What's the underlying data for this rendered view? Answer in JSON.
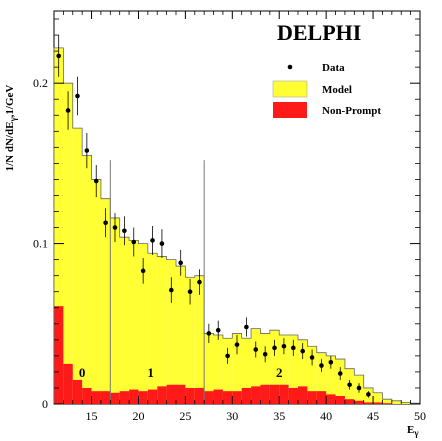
{
  "chart_data": {
    "type": "bar",
    "title": "DELPHI",
    "xlabel": "E",
    "xlabel_sub": "γ",
    "ylabel": "1/N dN/dE",
    "ylabel_sub": "γ",
    "ylabel_unit": ",1/GeV",
    "xlim": [
      11,
      50
    ],
    "ylim": [
      0,
      0.245
    ],
    "x_ticks": [
      15,
      20,
      25,
      30,
      35,
      40,
      45,
      50
    ],
    "x_tick_labels": [
      "15",
      "20",
      "25",
      "30",
      "35",
      "40",
      "45",
      "50"
    ],
    "y_ticks": [
      0,
      0.1,
      0.2
    ],
    "y_tick_labels": [
      "0",
      "0.1",
      "0.2"
    ],
    "bin_edges": [
      11,
      12,
      13,
      14,
      15,
      16,
      17,
      18,
      19,
      20,
      21,
      22,
      23,
      24,
      25,
      26,
      27,
      28,
      29,
      30,
      31,
      32,
      33,
      34,
      35,
      36,
      37,
      38,
      39,
      40,
      41,
      42,
      43,
      44,
      45,
      46,
      47,
      48,
      49,
      50
    ],
    "series": [
      {
        "name": "Model",
        "color": "#ffff33",
        "values": [
          0.222,
          0.2,
          0.172,
          0.155,
          0.14,
          0.128,
          0.116,
          0.104,
          0.102,
          0.1,
          0.094,
          0.092,
          0.09,
          0.086,
          0.079,
          0.08,
          0.044,
          0.043,
          0.041,
          0.044,
          0.041,
          0.047,
          0.044,
          0.046,
          0.043,
          0.043,
          0.04,
          0.036,
          0.032,
          0.03,
          0.028,
          0.022,
          0.018,
          0.01,
          0.007,
          0.003,
          0.002,
          0.001,
          0.0005
        ]
      },
      {
        "name": "Non-Prompt",
        "color": "#ff1a1a",
        "values": [
          0.061,
          0.025,
          0.015,
          0.01,
          0.008,
          0.008,
          0.007,
          0.008,
          0.009,
          0.008,
          0.009,
          0.011,
          0.012,
          0.012,
          0.01,
          0.01,
          0.008,
          0.009,
          0.008,
          0.008,
          0.01,
          0.011,
          0.012,
          0.012,
          0.012,
          0.01,
          0.011,
          0.008,
          0.008,
          0.006,
          0.005,
          0.003,
          0.002,
          0.001,
          0.001,
          0.0005,
          0,
          0,
          0
        ]
      }
    ],
    "data_points": {
      "name": "Data",
      "x": [
        11.5,
        12.5,
        13.5,
        14.5,
        15.5,
        16.5,
        17.5,
        18.5,
        19.5,
        20.5,
        21.5,
        22.5,
        23.5,
        24.5,
        25.5,
        26.5,
        27.5,
        28.5,
        29.5,
        30.5,
        31.5,
        32.5,
        33.5,
        34.5,
        35.5,
        36.5,
        37.5,
        38.5,
        39.5,
        40.5,
        41.5,
        42.5,
        43.5,
        44.5
      ],
      "y": [
        0.217,
        0.183,
        0.192,
        0.158,
        0.139,
        0.113,
        0.11,
        0.108,
        0.101,
        0.083,
        0.102,
        0.1,
        0.071,
        0.088,
        0.07,
        0.076,
        0.044,
        0.046,
        0.03,
        0.037,
        0.048,
        0.034,
        0.031,
        0.035,
        0.036,
        0.035,
        0.033,
        0.029,
        0.024,
        0.026,
        0.019,
        0.012,
        0.01,
        0.006
      ],
      "err": [
        0.013,
        0.012,
        0.012,
        0.011,
        0.01,
        0.009,
        0.009,
        0.009,
        0.009,
        0.008,
        0.009,
        0.009,
        0.008,
        0.008,
        0.008,
        0.008,
        0.006,
        0.006,
        0.005,
        0.006,
        0.006,
        0.005,
        0.005,
        0.005,
        0.005,
        0.005,
        0.005,
        0.005,
        0.004,
        0.004,
        0.004,
        0.003,
        0.003,
        0.002
      ]
    },
    "region_boundaries": [
      17,
      27
    ],
    "region_labels": [
      {
        "text": "0",
        "x": 14.0,
        "y": 0.02
      },
      {
        "text": "1",
        "x": 21.3,
        "y": 0.02
      },
      {
        "text": "2",
        "x": 35.0,
        "y": 0.02
      }
    ],
    "legend": {
      "position": "top-right",
      "entries": [
        {
          "label": "Data",
          "kind": "marker",
          "color": "#000000"
        },
        {
          "label": "Model",
          "kind": "box",
          "color": "#ffff33"
        },
        {
          "label": "Non-Prompt",
          "kind": "box",
          "color": "#ff1a1a"
        }
      ]
    }
  }
}
